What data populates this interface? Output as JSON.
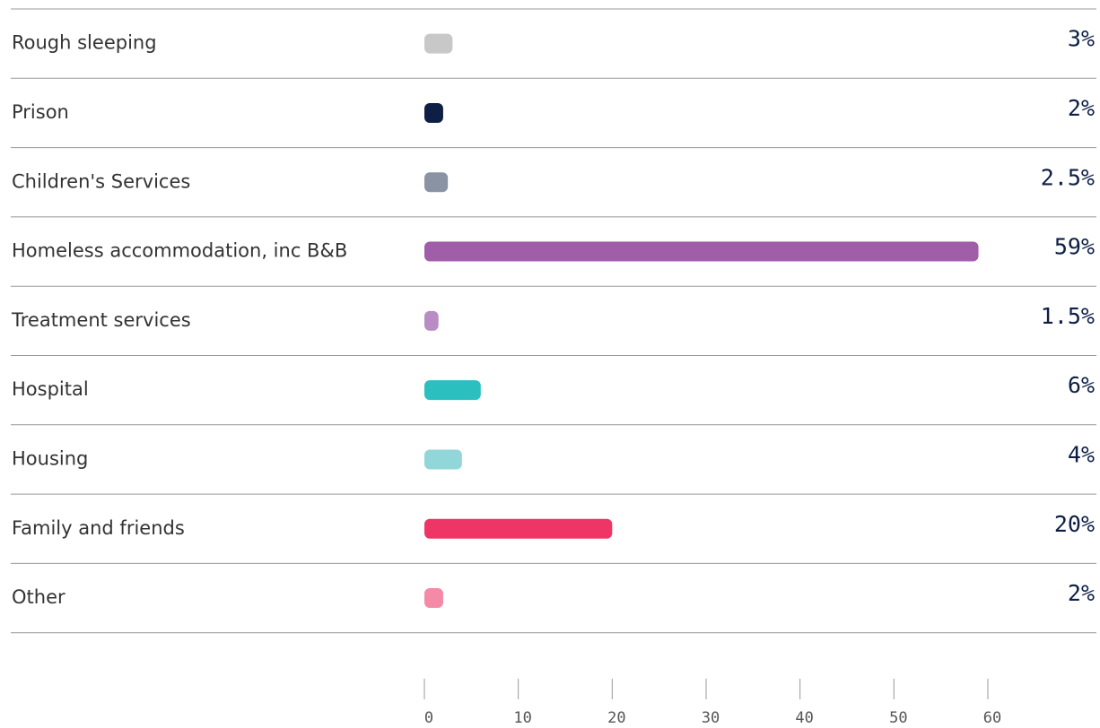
{
  "chart_data": {
    "type": "bar",
    "orientation": "horizontal",
    "categories": [
      "Rough sleeping",
      "Prison",
      "Children's Services",
      "Homeless accommodation, inc B&B",
      "Treatment services",
      "Hospital",
      "Housing",
      "Family and friends",
      "Other"
    ],
    "values": [
      3,
      2,
      2.5,
      59,
      1.5,
      6,
      4,
      20,
      2
    ],
    "value_labels": [
      "3%",
      "2%",
      "2.5%",
      "59%",
      "1.5%",
      "6%",
      "4%",
      "20%",
      "2%"
    ],
    "colors": [
      "#c8c8c8",
      "#0d1f45",
      "#8a93a3",
      "#a05ea8",
      "#b98cc4",
      "#2bbfbf",
      "#91d6d8",
      "#ef3565",
      "#f48aa6"
    ],
    "xlim": [
      0,
      60
    ],
    "xticks": [
      0,
      10,
      20,
      30,
      40,
      50,
      60
    ]
  }
}
